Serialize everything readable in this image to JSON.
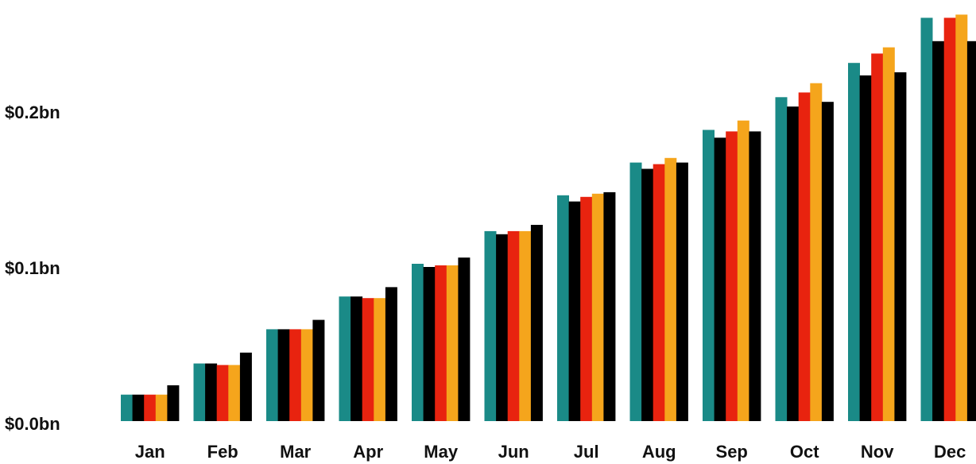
{
  "chart_data": {
    "type": "bar",
    "categories": [
      "Jan",
      "Feb",
      "Mar",
      "Apr",
      "May",
      "Jun",
      "Jul",
      "Aug",
      "Sep",
      "Oct",
      "Nov",
      "Dec"
    ],
    "series": [
      {
        "values": [
          0.017,
          0.037,
          0.059,
          0.08,
          0.101,
          0.122,
          0.145,
          0.166,
          0.187,
          0.208,
          0.23,
          0.259
        ],
        "color": "#1a8a87"
      },
      {
        "values": [
          0.017,
          0.037,
          0.059,
          0.08,
          0.099,
          0.12,
          0.141,
          0.162,
          0.182,
          0.202,
          0.222,
          0.244
        ],
        "color": "#000000"
      },
      {
        "values": [
          0.017,
          0.036,
          0.059,
          0.079,
          0.1,
          0.122,
          0.144,
          0.165,
          0.186,
          0.211,
          0.236,
          0.259
        ],
        "color": "#e8230f"
      },
      {
        "values": [
          0.017,
          0.036,
          0.059,
          0.079,
          0.1,
          0.122,
          0.146,
          0.169,
          0.193,
          0.217,
          0.24,
          0.261
        ],
        "color": "#f5a51c"
      },
      {
        "values": [
          0.023,
          0.044,
          0.065,
          0.086,
          0.105,
          0.126,
          0.147,
          0.166,
          0.186,
          0.205,
          0.224,
          0.244
        ],
        "color": "#000000"
      }
    ],
    "y_ticks": [
      {
        "value": 0.0,
        "label": "$0.0bn"
      },
      {
        "value": 0.1,
        "label": "$0.1bn"
      },
      {
        "value": 0.2,
        "label": "$0.2bn"
      }
    ],
    "ylim": [
      0,
      0.265
    ],
    "grid": false,
    "legend": "none"
  }
}
